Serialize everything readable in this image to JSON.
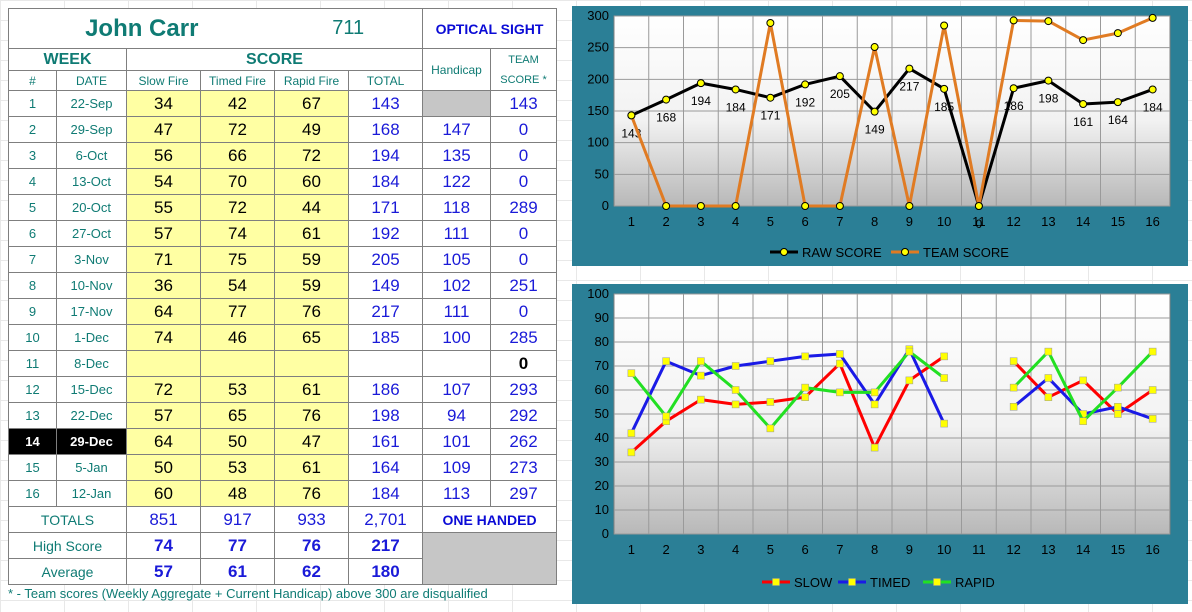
{
  "header": {
    "name": "John Carr",
    "shooter_id": "711",
    "category": "OPTICAL SIGHT"
  },
  "columns": {
    "week": "WEEK",
    "score": "SCORE",
    "handicap": "Handicap",
    "team_score": "TEAM\nSCORE *",
    "num": "#",
    "date": "DATE",
    "slow": "Slow Fire",
    "timed": "Timed Fire",
    "rapid": "Rapid Fire",
    "total": "TOTAL"
  },
  "rows": [
    {
      "num": "1",
      "date": "22-Sep",
      "slow": "34",
      "timed": "42",
      "rapid": "67",
      "total": "143",
      "handicap": "",
      "team": "143"
    },
    {
      "num": "2",
      "date": "29-Sep",
      "slow": "47",
      "timed": "72",
      "rapid": "49",
      "total": "168",
      "handicap": "147",
      "team": "0"
    },
    {
      "num": "3",
      "date": "6-Oct",
      "slow": "56",
      "timed": "66",
      "rapid": "72",
      "total": "194",
      "handicap": "135",
      "team": "0"
    },
    {
      "num": "4",
      "date": "13-Oct",
      "slow": "54",
      "timed": "70",
      "rapid": "60",
      "total": "184",
      "handicap": "122",
      "team": "0"
    },
    {
      "num": "5",
      "date": "20-Oct",
      "slow": "55",
      "timed": "72",
      "rapid": "44",
      "total": "171",
      "handicap": "118",
      "team": "289"
    },
    {
      "num": "6",
      "date": "27-Oct",
      "slow": "57",
      "timed": "74",
      "rapid": "61",
      "total": "192",
      "handicap": "111",
      "team": "0"
    },
    {
      "num": "7",
      "date": "3-Nov",
      "slow": "71",
      "timed": "75",
      "rapid": "59",
      "total": "205",
      "handicap": "105",
      "team": "0"
    },
    {
      "num": "8",
      "date": "10-Nov",
      "slow": "36",
      "timed": "54",
      "rapid": "59",
      "total": "149",
      "handicap": "102",
      "team": "251"
    },
    {
      "num": "9",
      "date": "17-Nov",
      "slow": "64",
      "timed": "77",
      "rapid": "76",
      "total": "217",
      "handicap": "111",
      "team": "0"
    },
    {
      "num": "10",
      "date": "1-Dec",
      "slow": "74",
      "timed": "46",
      "rapid": "65",
      "total": "185",
      "handicap": "100",
      "team": "285"
    },
    {
      "num": "11",
      "date": "8-Dec",
      "slow": "",
      "timed": "",
      "rapid": "",
      "total": "",
      "handicap": "",
      "team": "0"
    },
    {
      "num": "12",
      "date": "15-Dec",
      "slow": "72",
      "timed": "53",
      "rapid": "61",
      "total": "186",
      "handicap": "107",
      "team": "293"
    },
    {
      "num": "13",
      "date": "22-Dec",
      "slow": "57",
      "timed": "65",
      "rapid": "76",
      "total": "198",
      "handicap": "94",
      "team": "292"
    },
    {
      "num": "14",
      "date": "29-Dec",
      "slow": "64",
      "timed": "50",
      "rapid": "47",
      "total": "161",
      "handicap": "101",
      "team": "262"
    },
    {
      "num": "15",
      "date": "5-Jan",
      "slow": "50",
      "timed": "53",
      "rapid": "61",
      "total": "164",
      "handicap": "109",
      "team": "273"
    },
    {
      "num": "16",
      "date": "12-Jan",
      "slow": "60",
      "timed": "48",
      "rapid": "76",
      "total": "184",
      "handicap": "113",
      "team": "297"
    }
  ],
  "selected_row": "14",
  "footer": {
    "totals": {
      "label": "TOTALS",
      "slow": "851",
      "timed": "917",
      "rapid": "933",
      "total": "2,701",
      "note": "ONE HANDED"
    },
    "high": {
      "label": "High Score",
      "slow": "74",
      "timed": "77",
      "rapid": "76",
      "total": "217"
    },
    "average": {
      "label": "Average",
      "slow": "57",
      "timed": "61",
      "rapid": "62",
      "total": "180"
    }
  },
  "footnote": "* - Team scores (Weekly Aggregate + Current Handicap) above 300 are disqualified",
  "colors": {
    "panel": "#2b7f96",
    "raw": "#000000",
    "team": "#e07b23",
    "slow": "#ff0000",
    "timed": "#1a1ae6",
    "rapid": "#22e022"
  },
  "chart_data": [
    {
      "type": "line",
      "x": [
        1,
        2,
        3,
        4,
        5,
        6,
        7,
        8,
        9,
        10,
        11,
        12,
        13,
        14,
        15,
        16
      ],
      "ylim": [
        0,
        300
      ],
      "yticks": [
        0,
        50,
        100,
        150,
        200,
        250,
        300
      ],
      "series": [
        {
          "name": "RAW SCORE",
          "values": [
            143,
            168,
            194,
            184,
            171,
            192,
            205,
            149,
            217,
            185,
            0,
            186,
            198,
            161,
            164,
            184
          ],
          "data_labels": [
            "143",
            "168",
            "194",
            "184",
            "171",
            "192",
            "205",
            "149",
            "217",
            "185",
            "0",
            "186",
            "198",
            "161",
            "164",
            "184"
          ]
        },
        {
          "name": "TEAM SCORE",
          "values": [
            143,
            0,
            0,
            0,
            289,
            0,
            0,
            251,
            0,
            285,
            0,
            293,
            292,
            262,
            273,
            297
          ]
        }
      ],
      "legend": "bottom"
    },
    {
      "type": "line",
      "x": [
        1,
        2,
        3,
        4,
        5,
        6,
        7,
        8,
        9,
        10,
        11,
        12,
        13,
        14,
        15,
        16
      ],
      "ylim": [
        0,
        100
      ],
      "yticks": [
        0,
        10,
        20,
        30,
        40,
        50,
        60,
        70,
        80,
        90,
        100
      ],
      "series": [
        {
          "name": "SLOW",
          "values": [
            34,
            47,
            56,
            54,
            55,
            57,
            71,
            36,
            64,
            74,
            null,
            72,
            57,
            64,
            50,
            60
          ]
        },
        {
          "name": "TIMED",
          "values": [
            42,
            72,
            66,
            70,
            72,
            74,
            75,
            54,
            77,
            46,
            null,
            53,
            65,
            50,
            53,
            48
          ]
        },
        {
          "name": "RAPID",
          "values": [
            67,
            49,
            72,
            60,
            44,
            61,
            59,
            59,
            76,
            65,
            null,
            61,
            76,
            47,
            61,
            76
          ]
        }
      ],
      "legend": "bottom"
    }
  ]
}
